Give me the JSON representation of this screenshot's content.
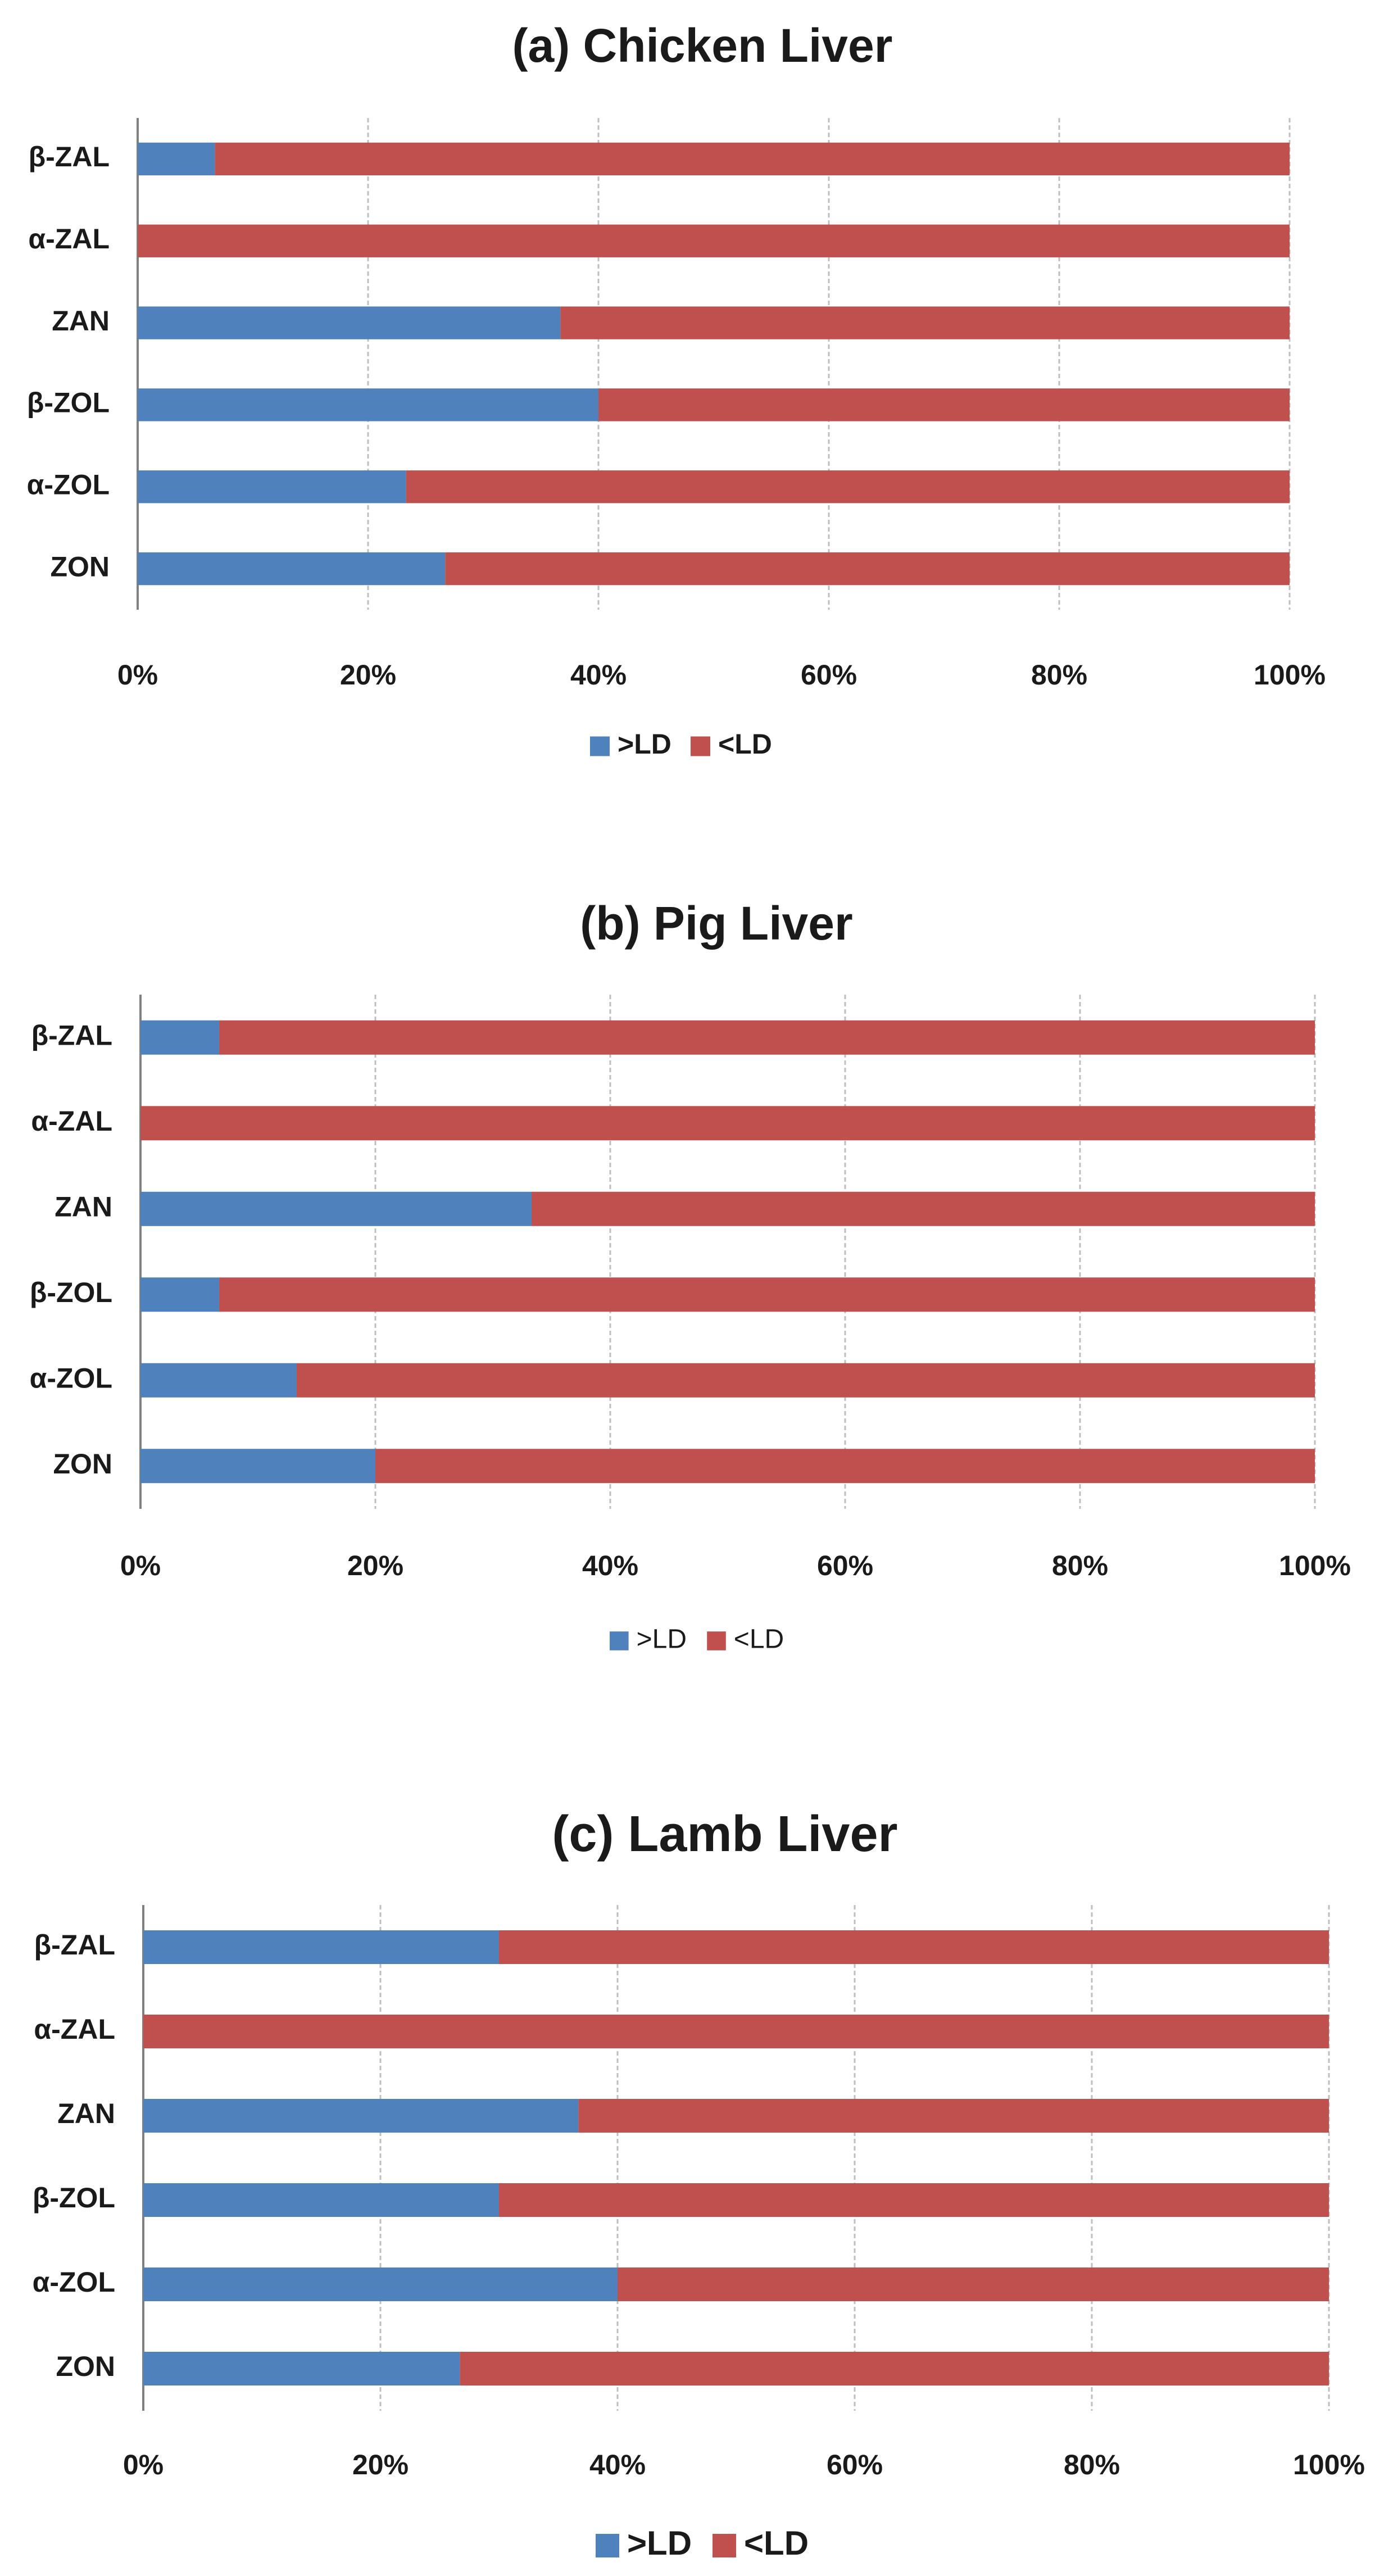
{
  "colors": {
    "above": "#4F81BD",
    "below": "#C0504D",
    "grid": "#BFBFBF",
    "axis": "#808080"
  },
  "chart_data": [
    {
      "type": "bar",
      "orientation": "horizontal",
      "stacked": "percent",
      "title": "(a) Chicken Liver",
      "categories": [
        "β-ZAL",
        "α-ZAL",
        "ZAN",
        "β-ZOL",
        "α-ZOL",
        "ZON"
      ],
      "series": [
        {
          "name": ">LD",
          "values": [
            6.7,
            0,
            36.7,
            40.0,
            23.3,
            26.7
          ]
        },
        {
          "name": "<LD",
          "values": [
            93.3,
            100,
            63.3,
            60.0,
            76.7,
            73.3
          ]
        }
      ],
      "xticks": [
        "0%",
        "20%",
        "40%",
        "60%",
        "80%",
        "100%"
      ],
      "xlim": [
        0,
        100
      ],
      "legend": "bottom",
      "grid": true
    },
    {
      "type": "bar",
      "orientation": "horizontal",
      "stacked": "percent",
      "title": "(b) Pig Liver",
      "categories": [
        "β-ZAL",
        "α-ZAL",
        "ZAN",
        "β-ZOL",
        "α-ZOL",
        "ZON"
      ],
      "series": [
        {
          "name": ">LD",
          "values": [
            6.7,
            0,
            33.3,
            6.7,
            13.3,
            20.0
          ]
        },
        {
          "name": "<LD",
          "values": [
            93.3,
            100,
            66.7,
            93.3,
            86.7,
            80.0
          ]
        }
      ],
      "xticks": [
        "0%",
        "20%",
        "40%",
        "60%",
        "80%",
        "100%"
      ],
      "xlim": [
        0,
        100
      ],
      "legend": "bottom",
      "grid": true
    },
    {
      "type": "bar",
      "orientation": "horizontal",
      "stacked": "percent",
      "title": "(c) Lamb Liver",
      "categories": [
        "β-ZAL",
        "α-ZAL",
        "ZAN",
        "β-ZOL",
        "α-ZOL",
        "ZON"
      ],
      "series": [
        {
          "name": ">LD",
          "values": [
            30.0,
            0,
            36.7,
            30.0,
            40.0,
            26.7
          ]
        },
        {
          "name": "<LD",
          "values": [
            70.0,
            100,
            63.3,
            70.0,
            60.0,
            73.3
          ]
        }
      ],
      "xticks": [
        "0%",
        "20%",
        "40%",
        "60%",
        "80%",
        "100%"
      ],
      "xlim": [
        0,
        100
      ],
      "legend": "bottom",
      "grid": true
    }
  ]
}
